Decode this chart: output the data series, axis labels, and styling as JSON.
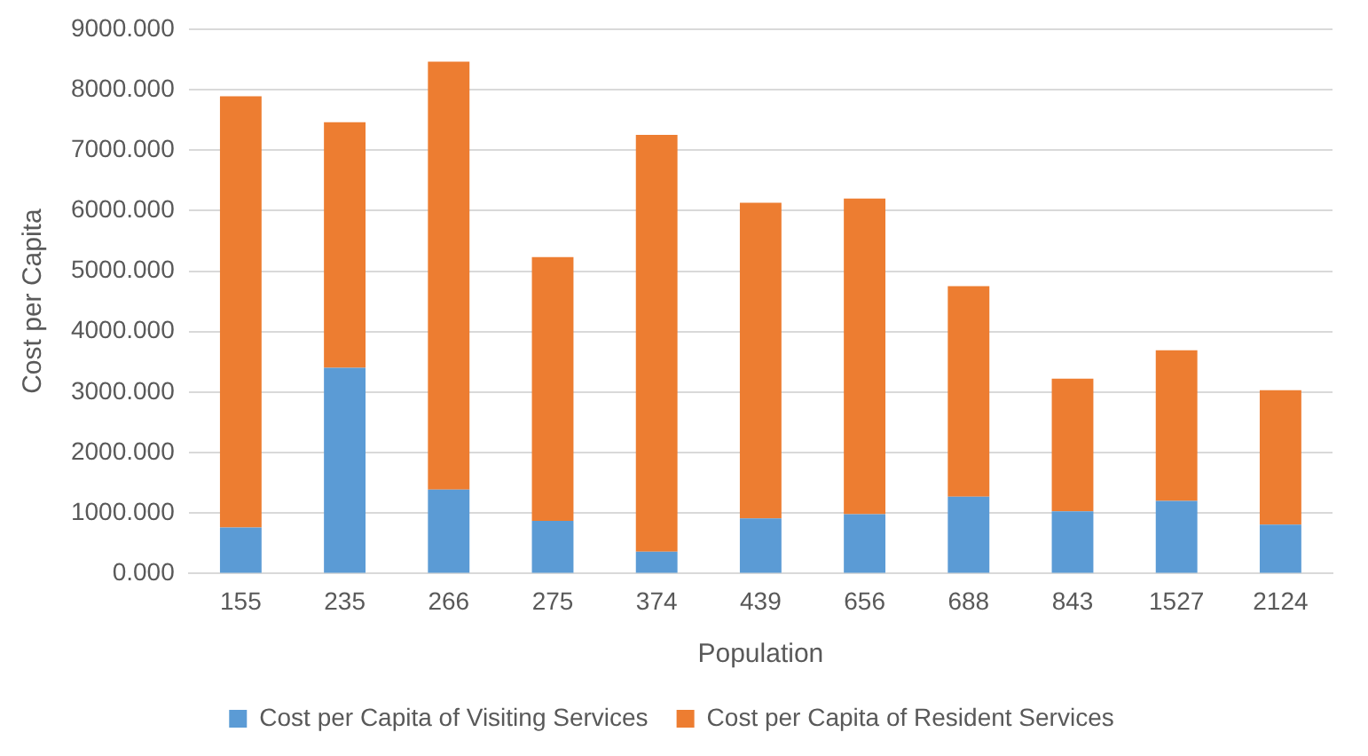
{
  "chart_data": {
    "type": "bar",
    "stacked": true,
    "xlabel": "Population",
    "ylabel": "Cost per Capita",
    "categories": [
      "155",
      "235",
      "266",
      "275",
      "374",
      "439",
      "656",
      "688",
      "843",
      "1527",
      "2124"
    ],
    "series": [
      {
        "name": "Cost per Capita of Visiting Services",
        "color": "#5b9bd5",
        "values": [
          760,
          3400,
          1390,
          870,
          360,
          910,
          980,
          1270,
          1030,
          1200,
          810
        ]
      },
      {
        "name": "Cost per Capita of Resident Services",
        "color": "#ed7d31",
        "values": [
          7130,
          4060,
          7070,
          4360,
          6890,
          5220,
          5220,
          3480,
          2190,
          2490,
          2220
        ]
      }
    ],
    "ylim": [
      0,
      9000
    ],
    "yticks": [
      {
        "value": 0,
        "label": "0.000"
      },
      {
        "value": 1000,
        "label": "1000.000"
      },
      {
        "value": 2000,
        "label": "2000.000"
      },
      {
        "value": 3000,
        "label": "3000.000"
      },
      {
        "value": 4000,
        "label": "4000.000"
      },
      {
        "value": 5000,
        "label": "5000.000"
      },
      {
        "value": 6000,
        "label": "6000.000"
      },
      {
        "value": 7000,
        "label": "7000.000"
      },
      {
        "value": 8000,
        "label": "8000.000"
      },
      {
        "value": 9000,
        "label": "9000.000"
      }
    ],
    "grid": "y",
    "legend": "bottom"
  }
}
